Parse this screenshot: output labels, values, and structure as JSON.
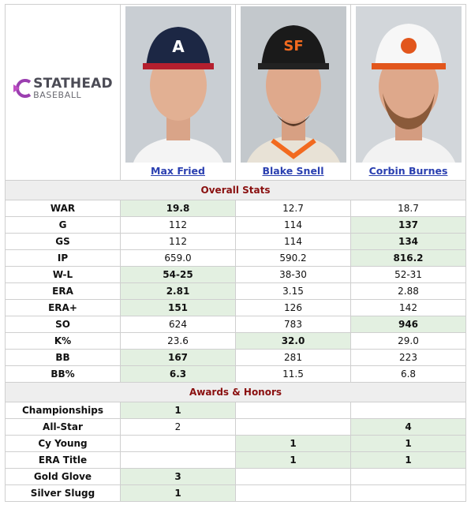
{
  "logo": {
    "brand": "STATHEAD",
    "sub": "BASEBALL"
  },
  "players": [
    "Max Fried",
    "Blake Snell",
    "Corbin Burnes"
  ],
  "sections": [
    {
      "title": "Overall Stats",
      "rows": [
        {
          "label": "WAR",
          "values": [
            "19.8",
            "12.7",
            "18.7"
          ],
          "best": [
            0
          ]
        },
        {
          "label": "G",
          "values": [
            "112",
            "114",
            "137"
          ],
          "best": [
            2
          ]
        },
        {
          "label": "GS",
          "values": [
            "112",
            "114",
            "134"
          ],
          "best": [
            2
          ]
        },
        {
          "label": "IP",
          "values": [
            "659.0",
            "590.2",
            "816.2"
          ],
          "best": [
            2
          ]
        },
        {
          "label": "W-L",
          "values": [
            "54-25",
            "38-30",
            "52-31"
          ],
          "best": [
            0
          ]
        },
        {
          "label": "ERA",
          "values": [
            "2.81",
            "3.15",
            "2.88"
          ],
          "best": [
            0
          ]
        },
        {
          "label": "ERA+",
          "values": [
            "151",
            "126",
            "142"
          ],
          "best": [
            0
          ]
        },
        {
          "label": "SO",
          "values": [
            "624",
            "783",
            "946"
          ],
          "best": [
            2
          ]
        },
        {
          "label": "K%",
          "values": [
            "23.6",
            "32.0",
            "29.0"
          ],
          "best": [
            1
          ]
        },
        {
          "label": "BB",
          "values": [
            "167",
            "281",
            "223"
          ],
          "best": [
            0
          ]
        },
        {
          "label": "BB%",
          "values": [
            "6.3",
            "11.5",
            "6.8"
          ],
          "best": [
            0
          ]
        }
      ]
    },
    {
      "title": "Awards & Honors",
      "rows": [
        {
          "label": "Championships",
          "values": [
            "1",
            null,
            null
          ],
          "best": [
            0
          ]
        },
        {
          "label": "All-Star",
          "values": [
            "2",
            null,
            "4"
          ],
          "best": [
            2
          ]
        },
        {
          "label": "Cy Young",
          "values": [
            null,
            "1",
            "1"
          ],
          "best": [
            1,
            2
          ]
        },
        {
          "label": "ERA Title",
          "values": [
            null,
            "1",
            "1"
          ],
          "best": [
            1,
            2
          ]
        },
        {
          "label": "Gold Glove",
          "values": [
            "3",
            null,
            null
          ],
          "best": [
            0
          ]
        },
        {
          "label": "Silver Slugg",
          "values": [
            "1",
            null,
            null
          ],
          "best": [
            0
          ]
        }
      ]
    }
  ]
}
